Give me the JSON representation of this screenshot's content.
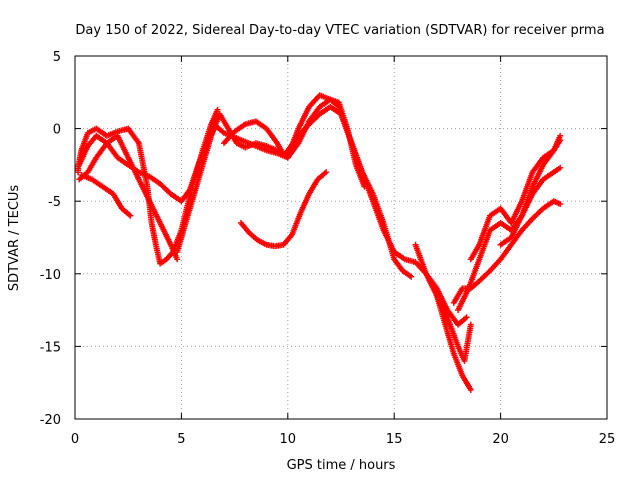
{
  "chart_data": {
    "type": "scatter",
    "title": "Day 150 of 2022, Sidereal Day-to-day VTEC variation (SDTVAR) for receiver prma",
    "xlabel": "GPS time / hours",
    "ylabel": "SDTVAR / TECUs",
    "xlim": [
      0,
      25
    ],
    "ylim": [
      -20,
      5
    ],
    "xticks": [
      0,
      5,
      10,
      15,
      20,
      25
    ],
    "yticks": [
      5,
      0,
      -5,
      -10,
      -15,
      -20
    ],
    "grid": true,
    "marker": "+",
    "color": "#ff0000",
    "series": [
      {
        "x": [
          0.1,
          0.3,
          0.6,
          1.0,
          1.5,
          2.0,
          2.5,
          3.0,
          3.4,
          3.6,
          3.8,
          4.0,
          4.3,
          4.6,
          5.0,
          5.5,
          6.0,
          6.4,
          6.7
        ],
        "y": [
          -3.0,
          -1.5,
          -0.3,
          0.0,
          -0.5,
          -0.2,
          0.0,
          -1.0,
          -4.0,
          -6.5,
          -8.0,
          -9.3,
          -9.0,
          -8.5,
          -7.0,
          -4.0,
          -1.5,
          0.3,
          1.3
        ]
      },
      {
        "x": [
          0.2,
          0.6,
          1.0,
          1.5,
          2.0,
          2.5,
          3.0,
          3.5,
          4.0,
          4.5,
          5.0,
          5.4,
          5.8,
          6.2,
          6.6,
          7.0,
          7.5,
          8.0,
          8.5,
          9.0,
          9.5,
          10.0
        ],
        "y": [
          -2.5,
          -1.2,
          -0.5,
          -1.0,
          -2.0,
          -2.5,
          -3.0,
          -3.3,
          -3.8,
          -4.5,
          -5.0,
          -4.2,
          -2.5,
          -1.0,
          0.2,
          -0.3,
          -0.6,
          -0.9,
          -1.2,
          -1.5,
          -1.7,
          -2.0
        ]
      },
      {
        "x": [
          0.2,
          0.6,
          1.0,
          1.5,
          2.0,
          2.5,
          3.0,
          3.5,
          4.0,
          4.5,
          4.8
        ],
        "y": [
          -3.5,
          -3.0,
          -2.0,
          -1.0,
          -0.5,
          -2.0,
          -3.5,
          -5.0,
          -6.5,
          -8.0,
          -9.0
        ]
      },
      {
        "x": [
          0.3,
          0.8,
          1.3,
          1.8,
          2.2,
          2.6
        ],
        "y": [
          -3.2,
          -3.5,
          -4.0,
          -4.5,
          -5.5,
          -6.0
        ]
      },
      {
        "x": [
          4.8,
          5.2,
          5.6,
          6.0,
          6.4,
          6.8,
          7.2,
          7.6,
          8.0,
          8.5,
          9.0,
          9.5,
          10.0,
          10.5,
          11.0,
          11.5,
          12.0,
          12.4
        ],
        "y": [
          -8.5,
          -6.5,
          -4.5,
          -2.5,
          -0.5,
          1.0,
          0.0,
          -1.0,
          -1.3,
          -1.0,
          -1.2,
          -1.5,
          -2.0,
          -1.0,
          0.5,
          1.5,
          2.0,
          1.5
        ]
      },
      {
        "x": [
          7.0,
          7.5,
          8.0,
          8.5,
          9.0,
          9.5,
          9.8,
          10.1,
          10.5,
          11.0,
          11.5,
          12.0,
          12.4,
          12.8,
          13.2,
          13.6
        ],
        "y": [
          -1.0,
          -0.2,
          0.3,
          0.5,
          0.0,
          -1.0,
          -1.8,
          -1.5,
          0.0,
          1.5,
          2.3,
          2.0,
          1.8,
          0.0,
          -2.5,
          -4.0
        ]
      },
      {
        "x": [
          7.8,
          8.2,
          8.6,
          9.0,
          9.4,
          9.8,
          10.2,
          10.6,
          11.0,
          11.4,
          11.8
        ],
        "y": [
          -6.5,
          -7.2,
          -7.7,
          -8.0,
          -8.1,
          -8.0,
          -7.3,
          -5.8,
          -4.5,
          -3.5,
          -3.0
        ]
      },
      {
        "x": [
          10.0,
          10.5,
          11.0,
          11.5,
          12.0,
          12.5,
          13.0,
          13.5,
          14.0,
          14.5,
          15.0,
          15.4,
          15.8
        ],
        "y": [
          -1.5,
          -0.5,
          0.3,
          1.0,
          1.5,
          1.0,
          -1.0,
          -3.0,
          -4.5,
          -6.5,
          -9.0,
          -9.8,
          -10.2
        ]
      },
      {
        "x": [
          12.5,
          13.0,
          13.5,
          14.0,
          14.5,
          15.0,
          15.5,
          16.0,
          16.5,
          17.0,
          17.5,
          17.8,
          18.2,
          18.6
        ],
        "y": [
          1.0,
          -1.0,
          -3.0,
          -5.0,
          -7.0,
          -8.5,
          -9.0,
          -9.2,
          -10.0,
          -11.5,
          -14.0,
          -15.5,
          -17.0,
          -18.0
        ]
      },
      {
        "x": [
          16.0,
          16.5,
          17.0,
          17.5,
          18.0,
          18.4
        ],
        "y": [
          -8.0,
          -10.0,
          -11.0,
          -12.5,
          -13.5,
          -13.0
        ]
      },
      {
        "x": [
          17.0,
          17.5,
          18.0,
          18.3,
          18.6
        ],
        "y": [
          -11.5,
          -13.0,
          -15.0,
          -16.0,
          -13.5
        ]
      },
      {
        "x": [
          17.8,
          18.2,
          18.6,
          19.0,
          19.5,
          20.0,
          20.5,
          21.0,
          21.5,
          22.0,
          22.5,
          22.8
        ],
        "y": [
          -12.0,
          -11.0,
          -11.0,
          -10.5,
          -9.8,
          -9.0,
          -8.0,
          -7.0,
          -6.2,
          -5.5,
          -5.0,
          -5.2
        ]
      },
      {
        "x": [
          18.0,
          18.5,
          19.0,
          19.5,
          20.0,
          20.5,
          21.0,
          21.5,
          22.0,
          22.5,
          22.8
        ],
        "y": [
          -12.5,
          -11.0,
          -9.0,
          -7.0,
          -6.5,
          -7.0,
          -6.0,
          -4.0,
          -2.5,
          -1.5,
          -0.8
        ]
      },
      {
        "x": [
          18.6,
          19.0,
          19.5,
          20.0,
          20.5,
          21.0,
          21.5,
          22.0,
          22.5,
          22.8
        ],
        "y": [
          -9.0,
          -8.0,
          -6.0,
          -5.5,
          -6.5,
          -5.0,
          -3.0,
          -2.0,
          -1.5,
          -0.5
        ]
      },
      {
        "x": [
          20.0,
          20.5,
          21.0,
          21.5,
          22.0,
          22.5,
          22.8
        ],
        "y": [
          -8.0,
          -7.5,
          -6.0,
          -4.5,
          -3.5,
          -3.0,
          -2.7
        ]
      }
    ]
  }
}
